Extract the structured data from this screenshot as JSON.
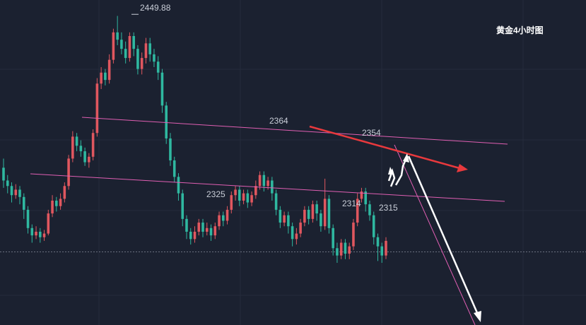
{
  "chart_data": {
    "type": "candlestick",
    "title": "黄金4小时图",
    "ylim": [
      2280,
      2455
    ],
    "grid": true,
    "colors": {
      "up": "#e0575f",
      "down": "#2fb8a0",
      "background": "#1b2130",
      "channel": "#e05fb3",
      "arrow_red": "#e8393d",
      "arrow_white": "#ffffff"
    },
    "annotations": [
      {
        "text": "2449.88",
        "price": 2449.88
      },
      {
        "text": "2364",
        "price": 2364
      },
      {
        "text": "2354",
        "price": 2354
      },
      {
        "text": "2325",
        "price": 2325
      },
      {
        "text": "2314",
        "price": 2314
      },
      {
        "text": "2315",
        "price": 2315
      }
    ],
    "current_price_line": 2320,
    "candles": [
      [
        2366,
        2359,
        2371,
        2355
      ],
      [
        2359,
        2356,
        2362,
        2352
      ],
      [
        2356,
        2351,
        2358,
        2347
      ],
      [
        2351,
        2354,
        2357,
        2349
      ],
      [
        2354,
        2350,
        2356,
        2346
      ],
      [
        2350,
        2343,
        2352,
        2338
      ],
      [
        2343,
        2333,
        2345,
        2330
      ],
      [
        2333,
        2329,
        2335,
        2325
      ],
      [
        2329,
        2331,
        2334,
        2327
      ],
      [
        2331,
        2328,
        2333,
        2325
      ],
      [
        2328,
        2330,
        2332,
        2326
      ],
      [
        2330,
        2341,
        2343,
        2329
      ],
      [
        2341,
        2348,
        2351,
        2339
      ],
      [
        2348,
        2345,
        2350,
        2342
      ],
      [
        2345,
        2349,
        2352,
        2343
      ],
      [
        2349,
        2356,
        2358,
        2347
      ],
      [
        2356,
        2371,
        2373,
        2354
      ],
      [
        2371,
        2383,
        2386,
        2369
      ],
      [
        2383,
        2378,
        2385,
        2375
      ],
      [
        2378,
        2375,
        2381,
        2372
      ],
      [
        2375,
        2369,
        2377,
        2367
      ],
      [
        2369,
        2372,
        2374,
        2366
      ],
      [
        2372,
        2385,
        2387,
        2370
      ],
      [
        2385,
        2412,
        2415,
        2383
      ],
      [
        2412,
        2418,
        2421,
        2409
      ],
      [
        2418,
        2414,
        2420,
        2411
      ],
      [
        2414,
        2425,
        2428,
        2412
      ],
      [
        2425,
        2440,
        2442,
        2423
      ],
      [
        2440,
        2436,
        2449,
        2433
      ],
      [
        2436,
        2431,
        2440,
        2428
      ],
      [
        2431,
        2426,
        2435,
        2423
      ],
      [
        2426,
        2438,
        2440,
        2424
      ],
      [
        2438,
        2431,
        2440,
        2427
      ],
      [
        2431,
        2420,
        2433,
        2417
      ],
      [
        2420,
        2426,
        2429,
        2417
      ],
      [
        2426,
        2434,
        2437,
        2423
      ],
      [
        2434,
        2428,
        2437,
        2424
      ],
      [
        2428,
        2424,
        2431,
        2421
      ],
      [
        2424,
        2418,
        2427,
        2414
      ],
      [
        2418,
        2400,
        2420,
        2396
      ],
      [
        2400,
        2382,
        2402,
        2379
      ],
      [
        2382,
        2370,
        2385,
        2367
      ],
      [
        2370,
        2361,
        2372,
        2358
      ],
      [
        2361,
        2352,
        2363,
        2348
      ],
      [
        2352,
        2338,
        2354,
        2334
      ],
      [
        2338,
        2331,
        2340,
        2327
      ],
      [
        2331,
        2327,
        2333,
        2324
      ],
      [
        2327,
        2331,
        2334,
        2325
      ],
      [
        2331,
        2336,
        2338,
        2329
      ],
      [
        2336,
        2331,
        2338,
        2328
      ],
      [
        2331,
        2333,
        2336,
        2329
      ],
      [
        2333,
        2329,
        2335,
        2326
      ],
      [
        2329,
        2334,
        2336,
        2327
      ],
      [
        2334,
        2340,
        2342,
        2332
      ],
      [
        2340,
        2337,
        2342,
        2334
      ],
      [
        2337,
        2343,
        2345,
        2335
      ],
      [
        2343,
        2351,
        2353,
        2341
      ],
      [
        2351,
        2354,
        2356,
        2348
      ],
      [
        2354,
        2348,
        2356,
        2345
      ],
      [
        2348,
        2352,
        2354,
        2346
      ],
      [
        2352,
        2347,
        2354,
        2344
      ],
      [
        2347,
        2351,
        2353,
        2345
      ],
      [
        2351,
        2356,
        2359,
        2349
      ],
      [
        2356,
        2362,
        2364,
        2354
      ],
      [
        2362,
        2356,
        2364,
        2353
      ],
      [
        2356,
        2359,
        2361,
        2354
      ],
      [
        2359,
        2352,
        2361,
        2348
      ],
      [
        2352,
        2343,
        2354,
        2340
      ],
      [
        2343,
        2336,
        2345,
        2333
      ],
      [
        2336,
        2340,
        2342,
        2334
      ],
      [
        2340,
        2334,
        2342,
        2330
      ],
      [
        2334,
        2327,
        2336,
        2323
      ],
      [
        2327,
        2330,
        2333,
        2324
      ],
      [
        2330,
        2336,
        2338,
        2328
      ],
      [
        2336,
        2343,
        2345,
        2334
      ],
      [
        2343,
        2338,
        2345,
        2335
      ],
      [
        2338,
        2346,
        2348,
        2336
      ],
      [
        2346,
        2341,
        2348,
        2337
      ],
      [
        2341,
        2334,
        2343,
        2331
      ],
      [
        2334,
        2349,
        2360,
        2332
      ],
      [
        2349,
        2333,
        2351,
        2330
      ],
      [
        2333,
        2322,
        2335,
        2318
      ],
      [
        2322,
        2318,
        2325,
        2314
      ],
      [
        2318,
        2325,
        2327,
        2316
      ],
      [
        2325,
        2319,
        2327,
        2316
      ],
      [
        2319,
        2323,
        2325,
        2316
      ],
      [
        2323,
        2336,
        2338,
        2321
      ],
      [
        2336,
        2349,
        2352,
        2334
      ],
      [
        2349,
        2353,
        2355,
        2347
      ],
      [
        2353,
        2346,
        2355,
        2342
      ],
      [
        2346,
        2340,
        2348,
        2337
      ],
      [
        2340,
        2328,
        2342,
        2324
      ],
      [
        2328,
        2323,
        2330,
        2315
      ],
      [
        2323,
        2318,
        2325,
        2314
      ],
      [
        2318,
        2326,
        2328,
        2316
      ]
    ]
  }
}
